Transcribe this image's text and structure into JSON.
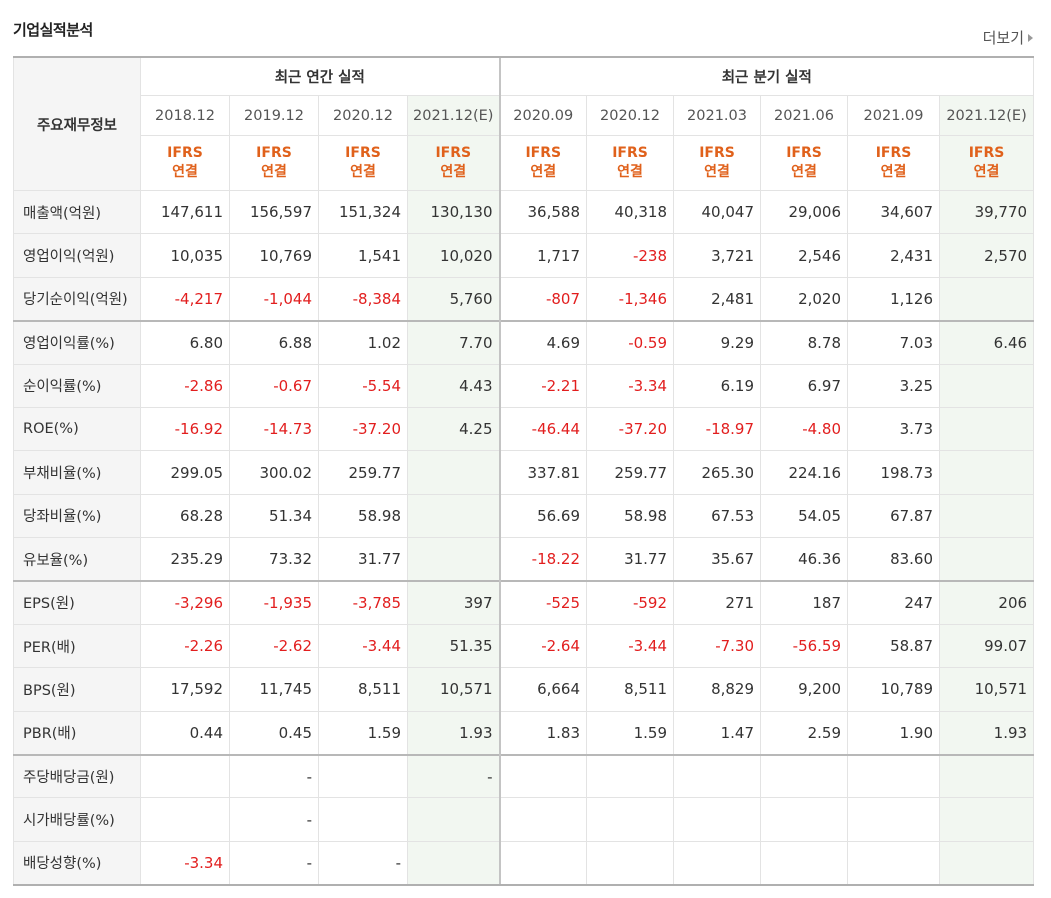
{
  "header": {
    "title": "기업실적분석",
    "more_label": "더보기"
  },
  "table": {
    "corner_label": "주요재무정보",
    "group_annual": "최근 연간 실적",
    "group_quarter": "최근 분기 실적",
    "periods": [
      "2018.12",
      "2019.12",
      "2020.12",
      "2021.12(E)",
      "2020.09",
      "2020.12",
      "2021.03",
      "2021.06",
      "2021.09",
      "2021.12(E)"
    ],
    "ifrs_top": "IFRS",
    "ifrs_bottom": "연결",
    "rows": [
      {
        "label": "매출액(억원)",
        "values": [
          "147,611",
          "156,597",
          "151,324",
          "130,130",
          "36,588",
          "40,318",
          "40,047",
          "29,006",
          "34,607",
          "39,770"
        ]
      },
      {
        "label": "영업이익(억원)",
        "values": [
          "10,035",
          "10,769",
          "1,541",
          "10,020",
          "1,717",
          "-238",
          "3,721",
          "2,546",
          "2,431",
          "2,570"
        ]
      },
      {
        "label": "당기순이익(억원)",
        "values": [
          "-4,217",
          "-1,044",
          "-8,384",
          "5,760",
          "-807",
          "-1,346",
          "2,481",
          "2,020",
          "1,126",
          ""
        ]
      },
      {
        "label": "영업이익률(%)",
        "values": [
          "6.80",
          "6.88",
          "1.02",
          "7.70",
          "4.69",
          "-0.59",
          "9.29",
          "8.78",
          "7.03",
          "6.46"
        ]
      },
      {
        "label": "순이익률(%)",
        "values": [
          "-2.86",
          "-0.67",
          "-5.54",
          "4.43",
          "-2.21",
          "-3.34",
          "6.19",
          "6.97",
          "3.25",
          ""
        ]
      },
      {
        "label": "ROE(%)",
        "values": [
          "-16.92",
          "-14.73",
          "-37.20",
          "4.25",
          "-46.44",
          "-37.20",
          "-18.97",
          "-4.80",
          "3.73",
          ""
        ]
      },
      {
        "label": "부채비율(%)",
        "values": [
          "299.05",
          "300.02",
          "259.77",
          "",
          "337.81",
          "259.77",
          "265.30",
          "224.16",
          "198.73",
          ""
        ]
      },
      {
        "label": "당좌비율(%)",
        "values": [
          "68.28",
          "51.34",
          "58.98",
          "",
          "56.69",
          "58.98",
          "67.53",
          "54.05",
          "67.87",
          ""
        ]
      },
      {
        "label": "유보율(%)",
        "values": [
          "235.29",
          "73.32",
          "31.77",
          "",
          "-18.22",
          "31.77",
          "35.67",
          "46.36",
          "83.60",
          ""
        ]
      },
      {
        "label": "EPS(원)",
        "values": [
          "-3,296",
          "-1,935",
          "-3,785",
          "397",
          "-525",
          "-592",
          "271",
          "187",
          "247",
          "206"
        ]
      },
      {
        "label": "PER(배)",
        "values": [
          "-2.26",
          "-2.62",
          "-3.44",
          "51.35",
          "-2.64",
          "-3.44",
          "-7.30",
          "-56.59",
          "58.87",
          "99.07"
        ]
      },
      {
        "label": "BPS(원)",
        "values": [
          "17,592",
          "11,745",
          "8,511",
          "10,571",
          "6,664",
          "8,511",
          "8,829",
          "9,200",
          "10,789",
          "10,571"
        ]
      },
      {
        "label": "PBR(배)",
        "values": [
          "0.44",
          "0.45",
          "1.59",
          "1.93",
          "1.83",
          "1.59",
          "1.47",
          "2.59",
          "1.90",
          "1.93"
        ]
      },
      {
        "label": "주당배당금(원)",
        "values": [
          "",
          "-",
          "",
          "-",
          "",
          "",
          "",
          "",
          "",
          ""
        ]
      },
      {
        "label": "시가배당률(%)",
        "values": [
          "",
          "-",
          "",
          "",
          "",
          "",
          "",
          "",
          "",
          ""
        ]
      },
      {
        "label": "배당성향(%)",
        "values": [
          "-3.34",
          "-",
          "-",
          "",
          "",
          "",
          "",
          "",
          "",
          ""
        ]
      }
    ],
    "group_starts": [
      3,
      9,
      13
    ],
    "colors": {
      "negative": "#e21e1e",
      "ifrs": "#e0611b",
      "estimate_bg": "#f2f7f1"
    }
  }
}
